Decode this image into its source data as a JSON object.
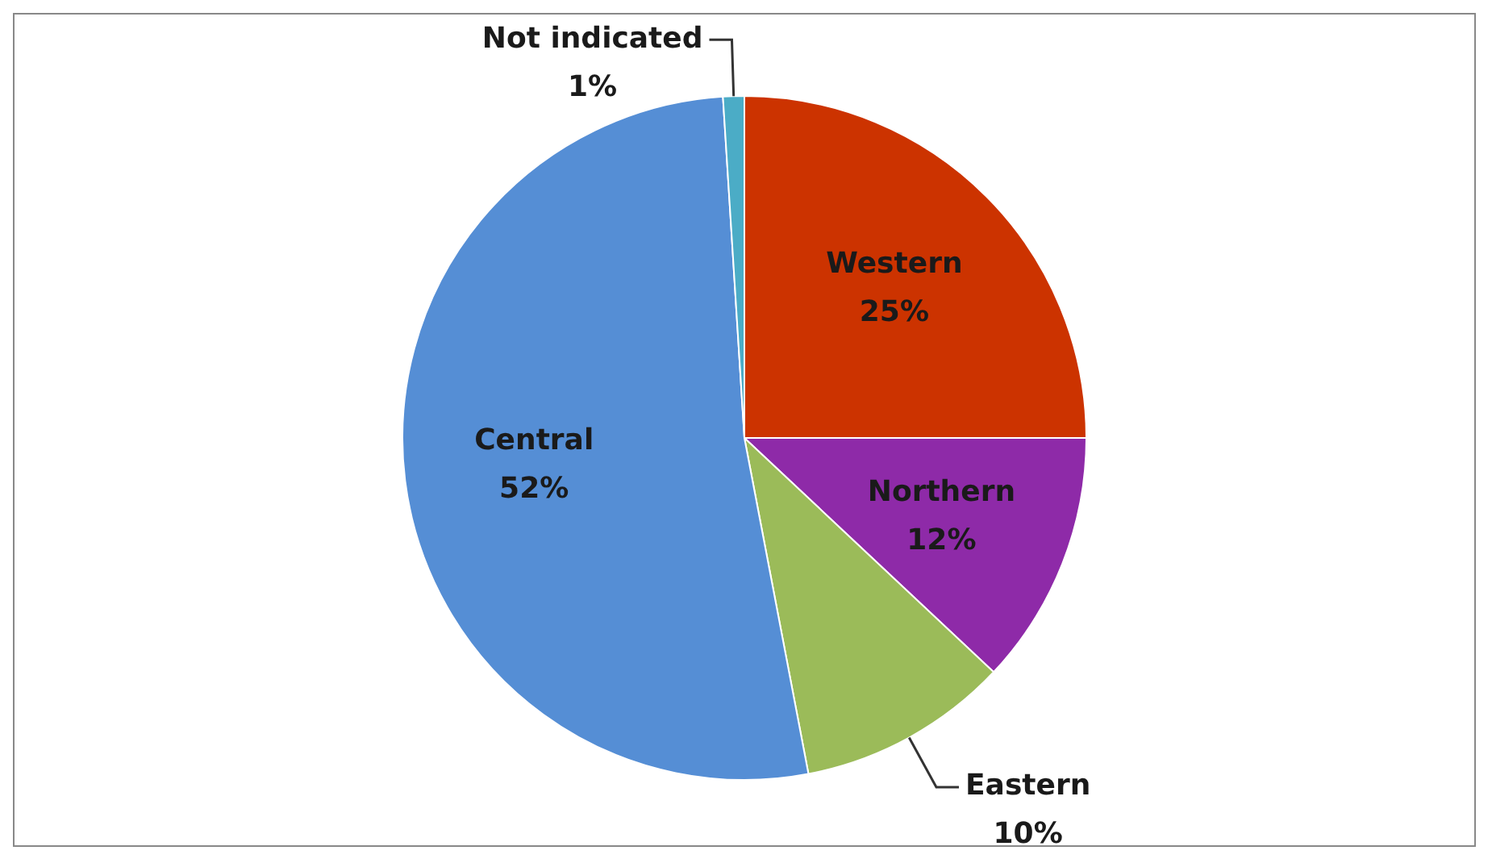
{
  "chart_data": {
    "type": "pie",
    "categories": [
      "Western",
      "Northern",
      "Eastern",
      "Central",
      "Not indicated"
    ],
    "values": [
      25,
      12,
      10,
      52,
      1
    ],
    "value_labels": [
      "25%",
      "12%",
      "10%",
      "52%",
      "1%"
    ],
    "colors": [
      "#cc3300",
      "#8e2aa8",
      "#9bbb59",
      "#558ed5",
      "#4bacc6"
    ],
    "legend": false
  }
}
